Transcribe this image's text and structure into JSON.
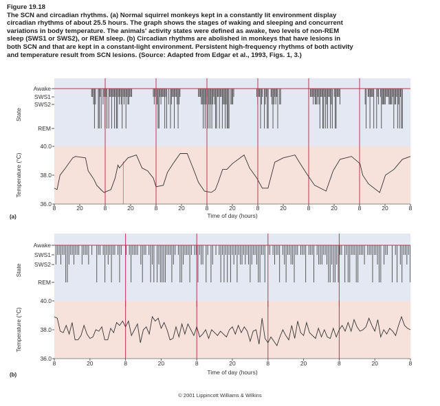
{
  "caption": {
    "figure_label": "Figure 19.18",
    "lines": [
      "The SCN and circadian rhythms. (a) Normal squirrel monkeys kept in a constantly lit environment display",
      "circadian rhythms of about 25.5 hours. The graph shows the stages of waking and sleeping and concurrent",
      "variations in body temperature. The animals' activity states were defined as awake, two levels of non-REM",
      "sleep (SWS1 or SWS2), or REM sleep. (b) Circadian rhythms are abolished in monkeys that have lesions in",
      "both SCN and that are kept in a constant-light environment. Persistent high-frequency rhythms of both activity",
      "and temperature result from SCN lesions. (Source: Adapted from Edgar et al., 1993, Figs. 1, 3.)"
    ]
  },
  "copyright": "© 2001 Lippincott Williams & Wilkins",
  "colors": {
    "state_bg": "#e3e8f3",
    "temp_bg": "#f6e2da",
    "day_line": "#c0334f",
    "bar": "#555555",
    "trace": "#333333"
  },
  "chart_data": [
    {
      "panel": "(a)",
      "type": "line",
      "state_axis": {
        "label": "State",
        "levels": [
          "Awake",
          "SWS1",
          "SWS2",
          "REM"
        ]
      },
      "temp_axis": {
        "label": "Temperature (°C)",
        "ticks": [
          "40.0",
          "38.0",
          "36.0"
        ],
        "ylim": [
          36,
          40
        ]
      },
      "xlabel": "Time of day (hours)",
      "x_tick_labels": [
        "8",
        "20",
        "8",
        "20",
        "8",
        "20",
        "8",
        "20",
        "8",
        "20",
        "8",
        "20",
        "8",
        "20",
        "8"
      ],
      "xlim_hours": [
        0,
        168
      ],
      "sleep_bouts_hours": [
        [
          16.7,
          36.7
        ],
        [
          46.7,
          59.4
        ],
        [
          68,
          84.7
        ],
        [
          95.5,
          106.8
        ],
        [
          120.8,
          134.8
        ],
        [
          146.2,
          164.2
        ]
      ],
      "temperature": {
        "hours": [
          0,
          1.3,
          2.7,
          5.3,
          8.7,
          10,
          14.7,
          16,
          18.7,
          20,
          22,
          23.4,
          26.7,
          28.7,
          30,
          30.7,
          34.7,
          38.7,
          41.4,
          44,
          46.7,
          48,
          51.4,
          53.4,
          56,
          59.4,
          62.7,
          65.4,
          68,
          70.8,
          74,
          76,
          77.3,
          79.4,
          81.4,
          84,
          89.5,
          92.1,
          95.5,
          98.1,
          100.8,
          104,
          108,
          113.5,
          116,
          119.5,
          122.8,
          128.2,
          131.5,
          134.8,
          140.2,
          144.2,
          145.5,
          148.2,
          153.5,
          156.2,
          160.2,
          164.2,
          168
        ],
        "values": [
          37.1,
          37.0,
          38.0,
          38.5,
          39.2,
          39.3,
          39.2,
          38.3,
          37.7,
          37.3,
          37.0,
          36.8,
          37.0,
          37.8,
          38.7,
          38.5,
          39.2,
          39.4,
          38.5,
          38.3,
          37.8,
          37.2,
          37.3,
          38.2,
          38.8,
          39.5,
          39.5,
          38.5,
          37.5,
          36.9,
          36.8,
          37.0,
          37.5,
          38.4,
          38.4,
          38.8,
          39.4,
          38.5,
          37.8,
          37.1,
          37.1,
          38.9,
          39.2,
          39.4,
          38.8,
          38.0,
          37.3,
          36.9,
          38.3,
          39.1,
          39.3,
          38.8,
          38.0,
          37.4,
          36.8,
          38.0,
          38.4,
          39.1,
          39.3
        ]
      }
    },
    {
      "panel": "(b)",
      "type": "line",
      "state_axis": {
        "label": "State",
        "levels": [
          "Awake",
          "SWS1",
          "SWS2",
          "REM"
        ]
      },
      "temp_axis": {
        "label": "Temperature (°C)",
        "ticks": [
          "40.0",
          "38.0",
          "36.0"
        ],
        "ylim": [
          36,
          40
        ]
      },
      "xlabel": "Time of day (hours)",
      "x_tick_labels": [
        "8",
        "20",
        "8",
        "20",
        "8",
        "20",
        "8",
        "20",
        "8",
        "20",
        "8"
      ],
      "xlim_hours": [
        0,
        120
      ],
      "sleep_bouts_hours": [
        [
          0,
          120
        ]
      ],
      "temperature": {
        "hours": [
          0,
          1,
          2,
          3,
          4,
          5,
          6,
          7,
          8,
          9,
          10,
          11,
          12,
          13,
          14,
          15,
          16,
          17,
          18,
          19,
          20,
          21,
          22,
          23,
          24,
          25,
          26,
          27,
          28,
          29,
          30,
          31,
          32,
          33,
          34,
          35,
          36,
          37,
          38,
          39,
          40,
          41,
          42,
          43,
          44,
          45,
          46,
          47,
          48,
          49,
          50,
          51,
          52,
          53,
          54,
          55,
          56,
          57,
          58,
          59,
          60,
          61,
          62,
          63,
          64,
          65,
          66,
          67,
          68,
          69,
          70,
          71,
          72,
          73,
          74,
          75,
          76,
          77,
          78,
          79,
          80,
          81,
          82,
          83,
          84,
          85,
          86,
          87,
          88,
          89,
          90,
          91,
          92,
          93,
          94,
          95,
          96,
          97,
          98,
          99,
          100,
          101,
          102,
          103,
          104,
          105,
          106,
          107,
          108,
          109,
          110,
          111,
          112,
          113,
          114,
          115,
          116,
          117,
          118,
          119,
          120
        ],
        "values": [
          38.9,
          38.8,
          37.9,
          37.8,
          38.3,
          37.7,
          38.5,
          37.3,
          37.3,
          37.6,
          38.3,
          37.7,
          37.4,
          37.5,
          38.0,
          37.9,
          38.2,
          37.3,
          37.3,
          38.1,
          37.8,
          38.5,
          38.3,
          38.6,
          38.2,
          38.6,
          37.6,
          38.0,
          38.4,
          37.1,
          38.0,
          38.2,
          37.7,
          38.9,
          38.6,
          38.8,
          38.1,
          38.5,
          38.0,
          37.3,
          37.4,
          38.2,
          37.5,
          38.4,
          37.7,
          38.4,
          38.0,
          37.6,
          38.2,
          37.5,
          37.7,
          38.0,
          37.4,
          38.0,
          37.8,
          37.6,
          37.9,
          37.7,
          37.5,
          38.0,
          38.2,
          37.7,
          38.3,
          37.8,
          38.2,
          37.9,
          37.2,
          37.9,
          38.0,
          37.0,
          38.8,
          37.4,
          37.1,
          37.5,
          37.2,
          36.9,
          37.5,
          38.0,
          37.6,
          37.3,
          38.3,
          37.4,
          38.6,
          37.8,
          37.6,
          38.5,
          37.8,
          37.6,
          37.4,
          38.1,
          37.5,
          38.0,
          37.5,
          37.4,
          38.1,
          37.5,
          38.0,
          38.3,
          37.9,
          38.5,
          37.9,
          38.7,
          38.2,
          37.9,
          38.0,
          38.2,
          38.8,
          38.3,
          37.9,
          38.7,
          37.5,
          38.0,
          37.7,
          38.1,
          37.9,
          37.6,
          38.3,
          38.9,
          38.3,
          38.1,
          38.0
        ]
      }
    }
  ]
}
